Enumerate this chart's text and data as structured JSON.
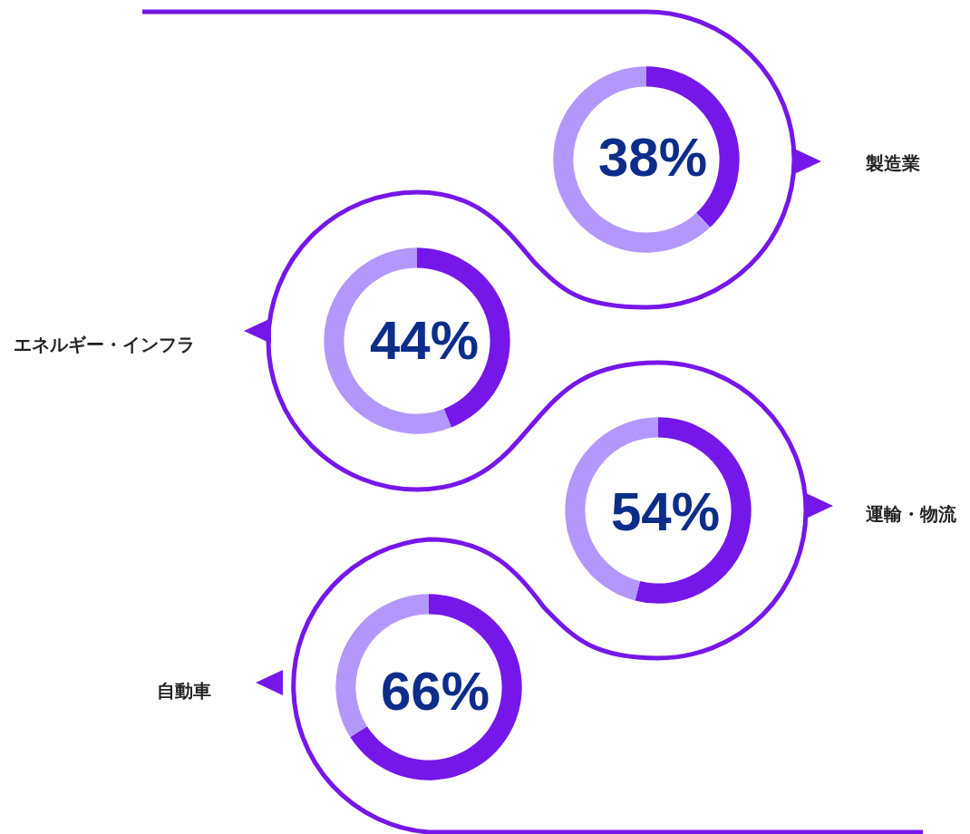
{
  "chart_data": [
    {
      "type": "donut",
      "title": "製造業",
      "categories": [
        null,
        null
      ],
      "values": [
        38,
        62
      ],
      "colors": [
        "#7517e8",
        "#b497fb"
      ],
      "value_labels": [
        "38%",
        null
      ]
    },
    {
      "type": "donut",
      "title": "エネルギー・インフラ",
      "categories": [
        null,
        null
      ],
      "values": [
        44,
        56
      ],
      "colors": [
        "#7517e8",
        "#b497fb"
      ],
      "value_labels": [
        "44%",
        null
      ]
    },
    {
      "type": "donut",
      "title": "運輸・物流",
      "categories": [
        null,
        null
      ],
      "values": [
        54,
        46
      ],
      "colors": [
        "#7517e8",
        "#b497fb"
      ],
      "value_labels": [
        "54%",
        null
      ]
    },
    {
      "type": "donut",
      "title": "自動車",
      "categories": [
        null,
        null
      ],
      "values": [
        66,
        34
      ],
      "colors": [
        "#7517e8",
        "#b497fb"
      ],
      "value_labels": [
        "66%",
        null
      ]
    }
  ]
}
